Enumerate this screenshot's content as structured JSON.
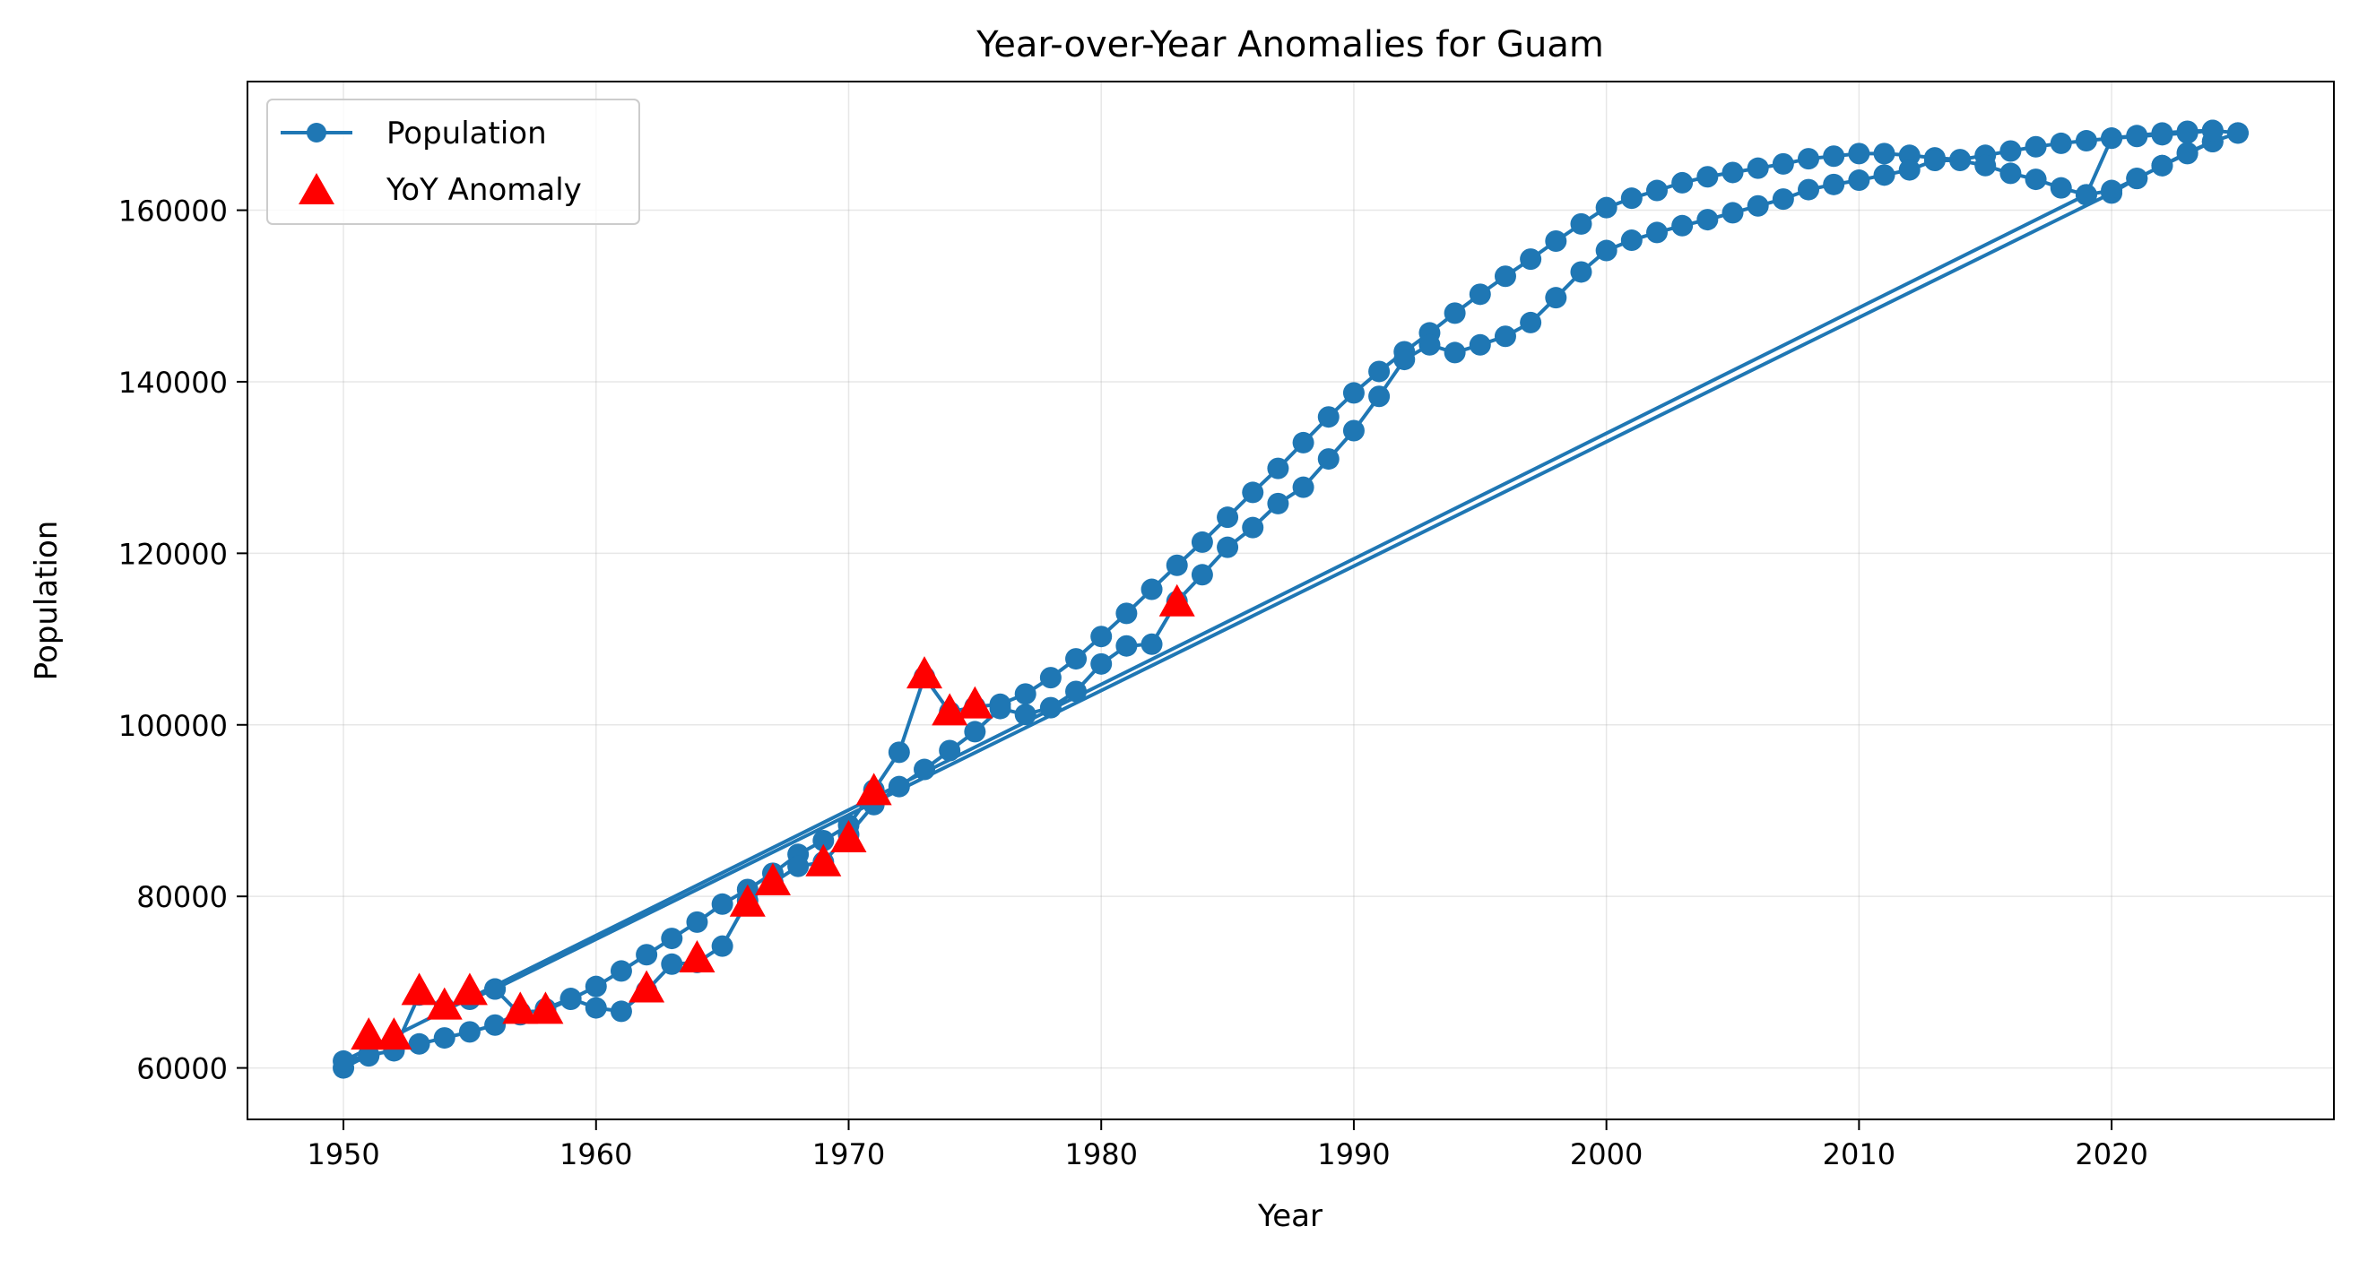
{
  "chart_data": {
    "type": "line",
    "title": "Year-over-Year Anomalies for Guam",
    "xlabel": "Year",
    "ylabel": "Population",
    "xlim": [
      1946.2,
      2028.8
    ],
    "ylim": [
      54000,
      175000
    ],
    "xticks": [
      1950,
      1960,
      1970,
      1980,
      1990,
      2000,
      2010,
      2020
    ],
    "yticks": [
      60000,
      80000,
      100000,
      120000,
      140000,
      160000
    ],
    "grid": true,
    "legend_position": "top-left",
    "colors": {
      "line": "#1f77b4",
      "anomaly": "#ff0000"
    },
    "series": [
      {
        "name": "Population",
        "marker": "circle",
        "points": [
          [
            1950,
            60000
          ],
          [
            1951,
            61500
          ],
          [
            1952,
            62000
          ],
          [
            1953,
            68500
          ],
          [
            1954,
            67000
          ],
          [
            1955,
            68000
          ],
          [
            1956,
            69200
          ],
          [
            2020,
            162000
          ],
          [
            2021,
            163700
          ],
          [
            2022,
            165200
          ],
          [
            2023,
            166600
          ],
          [
            2024,
            168000
          ],
          [
            2025,
            169000
          ],
          [
            2024,
            169300
          ],
          [
            2023,
            169200
          ],
          [
            2022,
            169000
          ],
          [
            2021,
            168700
          ],
          [
            2020,
            168400
          ],
          [
            2019,
            168100
          ],
          [
            2018,
            167800
          ],
          [
            2017,
            167400
          ],
          [
            2016,
            166900
          ],
          [
            2015,
            166400
          ],
          [
            2014,
            165900
          ],
          [
            2013,
            166100
          ],
          [
            2012,
            166400
          ],
          [
            2011,
            166600
          ],
          [
            2010,
            166600
          ],
          [
            2009,
            166300
          ],
          [
            2008,
            166000
          ],
          [
            2007,
            165400
          ],
          [
            2006,
            164900
          ],
          [
            2005,
            164400
          ],
          [
            2004,
            163900
          ],
          [
            2003,
            163200
          ],
          [
            2002,
            162300
          ],
          [
            2001,
            161400
          ],
          [
            2000,
            160300
          ],
          [
            1999,
            158400
          ],
          [
            1998,
            156400
          ],
          [
            1997,
            154300
          ],
          [
            1996,
            152300
          ],
          [
            1995,
            150200
          ],
          [
            1994,
            148000
          ],
          [
            1993,
            145700
          ],
          [
            1992,
            143500
          ],
          [
            1991,
            141200
          ],
          [
            1990,
            138700
          ],
          [
            1989,
            135900
          ],
          [
            1988,
            132900
          ],
          [
            1987,
            129900
          ],
          [
            1986,
            127100
          ],
          [
            1985,
            124200
          ],
          [
            1984,
            121300
          ],
          [
            1983,
            118600
          ],
          [
            1982,
            115800
          ],
          [
            1981,
            113000
          ],
          [
            1980,
            110300
          ],
          [
            1979,
            107700
          ],
          [
            1978,
            105500
          ],
          [
            1977,
            103600
          ],
          [
            1976,
            102400
          ],
          [
            1975,
            102100
          ],
          [
            1974,
            101500
          ],
          [
            1973,
            105600
          ],
          [
            1972,
            96800
          ],
          [
            1971,
            92400
          ],
          [
            1970,
            88300
          ],
          [
            1969,
            86500
          ],
          [
            1968,
            84900
          ],
          [
            1967,
            82700
          ],
          [
            1966,
            80800
          ],
          [
            1965,
            79100
          ],
          [
            1964,
            77000
          ],
          [
            1963,
            75100
          ],
          [
            1962,
            73200
          ],
          [
            1961,
            71300
          ],
          [
            1960,
            69500
          ],
          [
            1959,
            68000
          ],
          [
            1958,
            66700
          ],
          [
            1957,
            66500
          ],
          [
            1956,
            65000
          ],
          [
            1955,
            64200
          ],
          [
            1954,
            63500
          ],
          [
            1953,
            62800
          ],
          [
            1952,
            62100
          ],
          [
            1951,
            61400
          ],
          [
            1950,
            60800
          ],
          [
            2019,
            161800
          ],
          [
            2020,
            162300
          ],
          [
            2021,
            163700
          ],
          [
            2022,
            165200
          ],
          [
            2023,
            166700
          ],
          [
            2024,
            168000
          ],
          [
            2025,
            169000
          ],
          [
            2024,
            169300
          ],
          [
            2023,
            169000
          ],
          [
            2022,
            168800
          ],
          [
            2021,
            168600
          ],
          [
            2020,
            168400
          ],
          [
            2019,
            161800
          ],
          [
            2018,
            162600
          ],
          [
            2017,
            163600
          ],
          [
            2016,
            164300
          ],
          [
            2015,
            165200
          ],
          [
            2014,
            165800
          ],
          [
            2013,
            165800
          ],
          [
            2012,
            164700
          ],
          [
            2011,
            164100
          ],
          [
            2010,
            163500
          ],
          [
            2009,
            163000
          ],
          [
            2008,
            162400
          ],
          [
            2007,
            161300
          ],
          [
            2006,
            160500
          ],
          [
            2005,
            159700
          ],
          [
            2004,
            158900
          ],
          [
            2003,
            158200
          ],
          [
            2002,
            157400
          ],
          [
            2001,
            156500
          ],
          [
            2000,
            155300
          ],
          [
            1999,
            152800
          ],
          [
            1998,
            149800
          ],
          [
            1997,
            146900
          ],
          [
            1996,
            145300
          ],
          [
            1995,
            144300
          ],
          [
            1994,
            143400
          ],
          [
            1993,
            144300
          ],
          [
            1992,
            142600
          ],
          [
            1991,
            138300
          ],
          [
            1990,
            134300
          ],
          [
            1989,
            131000
          ],
          [
            1988,
            127700
          ],
          [
            1987,
            125800
          ],
          [
            1986,
            123000
          ],
          [
            1985,
            120700
          ],
          [
            1984,
            117500
          ],
          [
            1983,
            114400
          ],
          [
            1982,
            109400
          ],
          [
            1981,
            109200
          ],
          [
            1980,
            107100
          ],
          [
            1979,
            103900
          ],
          [
            1978,
            102000
          ],
          [
            1977,
            101200
          ],
          [
            1976,
            101900
          ],
          [
            1975,
            99200
          ],
          [
            1974,
            97000
          ],
          [
            1973,
            94800
          ],
          [
            1972,
            92800
          ],
          [
            1971,
            90700
          ],
          [
            1970,
            87200
          ],
          [
            1969,
            84000
          ],
          [
            1968,
            83500
          ],
          [
            1967,
            81600
          ],
          [
            1966,
            79500
          ],
          [
            1965,
            74200
          ],
          [
            1964,
            72300
          ],
          [
            1963,
            72100
          ],
          [
            1962,
            69000
          ],
          [
            1961,
            66600
          ],
          [
            1960,
            67000
          ],
          [
            1959,
            68100
          ],
          [
            1958,
            66900
          ],
          [
            1957,
            66200
          ],
          [
            1956,
            69200
          ]
        ]
      }
    ],
    "anomalies": {
      "name": "YoY Anomaly",
      "marker": "triangle",
      "points": [
        [
          1951,
          63500
        ],
        [
          1952,
          63500
        ],
        [
          1953,
          68700
        ],
        [
          1954,
          67000
        ],
        [
          1955,
          68700
        ],
        [
          1957,
          66500
        ],
        [
          1958,
          66500
        ],
        [
          1962,
          69000
        ],
        [
          1964,
          72500
        ],
        [
          1966,
          79000
        ],
        [
          1967,
          81500
        ],
        [
          1969,
          83700
        ],
        [
          1970,
          86500
        ],
        [
          1971,
          92000
        ],
        [
          1973,
          105600
        ],
        [
          1974,
          101300
        ],
        [
          1975,
          102100
        ],
        [
          1983,
          114000
        ]
      ]
    }
  }
}
